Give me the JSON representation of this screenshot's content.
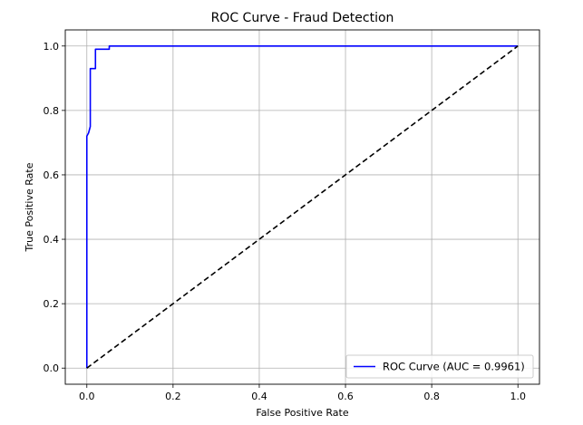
{
  "chart_data": {
    "type": "line",
    "title": "ROC Curve - Fraud Detection",
    "xlabel": "False Positive Rate",
    "ylabel": "True Positive Rate",
    "xlim": [
      -0.05,
      1.05
    ],
    "ylim": [
      -0.05,
      1.05
    ],
    "xticks": [
      0.0,
      0.2,
      0.4,
      0.6,
      0.8,
      1.0
    ],
    "yticks": [
      0.0,
      0.2,
      0.4,
      0.6,
      0.8,
      1.0
    ],
    "xtick_labels": [
      "0.0",
      "0.2",
      "0.4",
      "0.6",
      "0.8",
      "1.0"
    ],
    "ytick_labels": [
      "0.0",
      "0.2",
      "0.4",
      "0.6",
      "0.8",
      "1.0"
    ],
    "grid": true,
    "legend_position": "lower-right",
    "series": [
      {
        "name": "ROC Curve (AUC = 0.9961)",
        "color": "#0000ff",
        "style": "solid",
        "x": [
          0.0,
          0.0,
          0.0,
          0.004,
          0.008,
          0.008,
          0.012,
          0.012,
          0.02,
          0.02,
          0.026,
          0.052,
          0.052,
          1.0
        ],
        "y": [
          0.0,
          0.57,
          0.72,
          0.73,
          0.75,
          0.93,
          0.93,
          0.93,
          0.93,
          0.99,
          0.99,
          0.99,
          1.0,
          1.0
        ]
      },
      {
        "color": "#000000",
        "style": "dashed",
        "x": [
          0.0,
          1.0
        ],
        "y": [
          0.0,
          1.0
        ]
      }
    ]
  }
}
